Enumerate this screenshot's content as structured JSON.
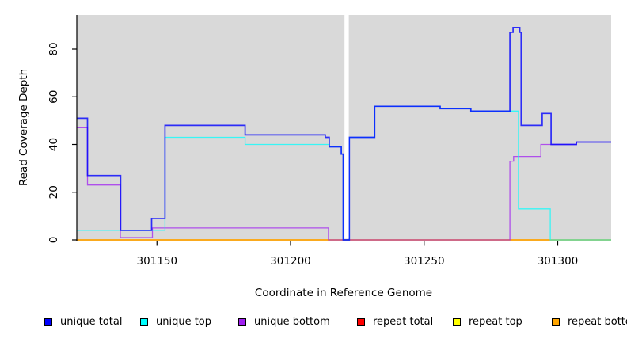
{
  "chart_data": {
    "type": "line",
    "subtype": "step",
    "title": "",
    "xlabel": "Coordinate in Reference Genome",
    "ylabel": "Read Coverage Depth",
    "xlim": [
      301120,
      301320
    ],
    "ylim": [
      0,
      94
    ],
    "x_ticks": [
      301150,
      301200,
      301250,
      301300
    ],
    "y_ticks": [
      0,
      20,
      40,
      60,
      80
    ],
    "grid": false,
    "plot_bg": "#d9d9d9",
    "masked_region": {
      "x_start": 301220.2,
      "x_end": 301221.8,
      "color": "#ffffff"
    },
    "legend_position": "bottom",
    "series": [
      {
        "name": "repeat total",
        "color": "#ff0000",
        "opacity": 1.0,
        "width": 1.2,
        "steps": [
          [
            301120,
            0
          ]
        ]
      },
      {
        "name": "repeat top",
        "color": "#ffff00",
        "opacity": 1.0,
        "width": 1.2,
        "steps": [
          [
            301120,
            0
          ]
        ]
      },
      {
        "name": "repeat bottom",
        "color": "#ffa500",
        "opacity": 1.0,
        "width": 1.4,
        "steps": [
          [
            301120,
            0
          ]
        ]
      },
      {
        "name": "unique bottom",
        "color": "#a020f0",
        "opacity": 0.75,
        "width": 1.3,
        "steps": [
          [
            301120,
            47
          ],
          [
            301124,
            23
          ],
          [
            301136.3,
            1
          ],
          [
            301148.3,
            5
          ],
          [
            301214.2,
            0
          ],
          [
            301282.1,
            33
          ],
          [
            301283.5,
            35
          ],
          [
            301293.7,
            40
          ],
          [
            301307,
            41
          ]
        ]
      },
      {
        "name": "unique top",
        "color": "#00ffff",
        "opacity": 0.75,
        "width": 1.3,
        "steps": [
          [
            301120,
            4
          ],
          [
            301153,
            43
          ],
          [
            301183,
            40
          ],
          [
            301214.5,
            39
          ],
          [
            301219,
            36
          ],
          [
            301219.7,
            0
          ],
          [
            301222,
            43
          ],
          [
            301231.5,
            56
          ],
          [
            301256,
            55
          ],
          [
            301267.5,
            54
          ],
          [
            301285.3,
            13
          ],
          [
            301297.2,
            0
          ]
        ]
      },
      {
        "name": "unique total",
        "color": "#0000ff",
        "opacity": 0.8,
        "width": 1.7,
        "steps": [
          [
            301120,
            51
          ],
          [
            301124,
            27
          ],
          [
            301136.4,
            4
          ],
          [
            301148,
            9
          ],
          [
            301153,
            48
          ],
          [
            301183,
            44
          ],
          [
            301213,
            43
          ],
          [
            301214.5,
            39
          ],
          [
            301219,
            36
          ],
          [
            301219.7,
            0
          ],
          [
            301222,
            43
          ],
          [
            301231.5,
            56
          ],
          [
            301256,
            55
          ],
          [
            301267.5,
            54
          ],
          [
            301282.1,
            87
          ],
          [
            301283.3,
            89
          ],
          [
            301285.8,
            87
          ],
          [
            301286.3,
            48
          ],
          [
            301294.2,
            53
          ],
          [
            301297.5,
            40
          ],
          [
            301307,
            41
          ]
        ]
      }
    ],
    "legend": [
      {
        "label": "unique total",
        "color": "#0000ff"
      },
      {
        "label": "unique top",
        "color": "#00ffff"
      },
      {
        "label": "unique bottom",
        "color": "#a020f0"
      },
      {
        "label": "repeat total",
        "color": "#ff0000"
      },
      {
        "label": "repeat top",
        "color": "#ffff00"
      },
      {
        "label": "repeat bottom",
        "color": "#ffa500"
      }
    ]
  }
}
